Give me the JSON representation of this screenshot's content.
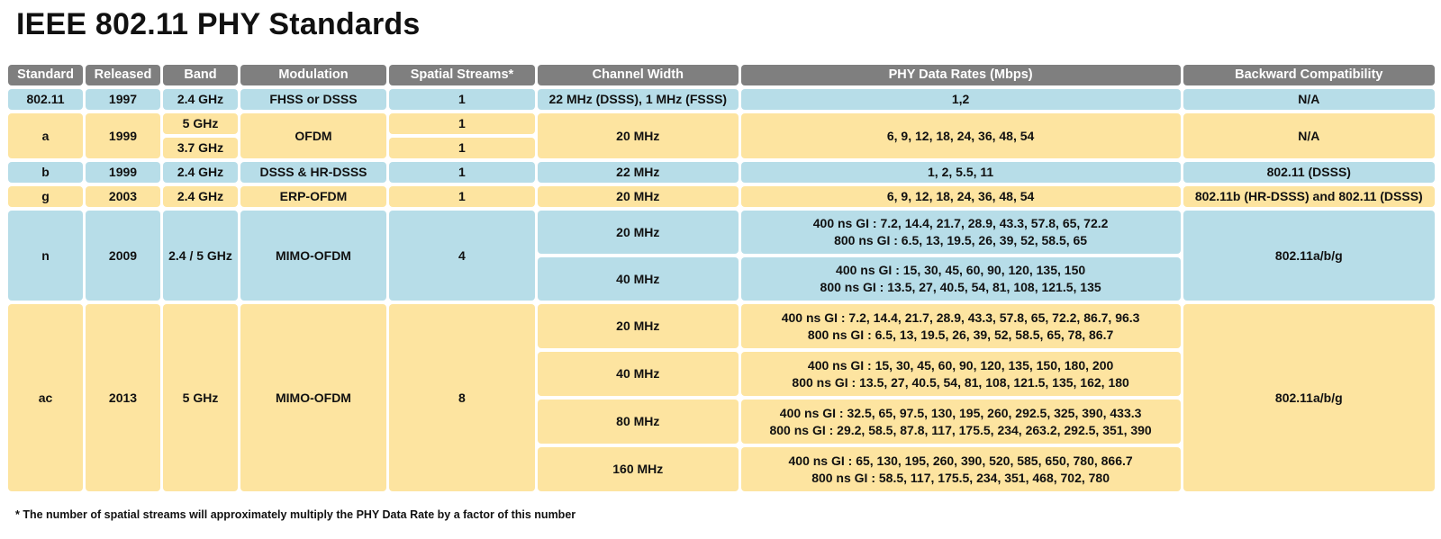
{
  "title": "IEEE 802.11 PHY Standards",
  "headers": {
    "standard": "Standard",
    "released": "Released",
    "band": "Band",
    "modulation": "Modulation",
    "streams": "Spatial Streams*",
    "channel_width": "Channel Width",
    "data_rates": "PHY Data Rates (Mbps)",
    "backward": "Backward Compatibility"
  },
  "rows": {
    "legacy": {
      "standard": "802.11",
      "released": "1997",
      "band": "2.4 GHz",
      "modulation": "FHSS or DSSS",
      "streams": "1",
      "channel_width": "22 MHz (DSSS), 1 MHz (FSSS)",
      "data_rates": "1,2",
      "backward": "N/A"
    },
    "a": {
      "standard": "a",
      "released": "1999",
      "band_1": "5 GHz",
      "band_2": "3.7 GHz",
      "modulation": "OFDM",
      "streams_1": "1",
      "streams_2": "1",
      "channel_width": "20 MHz",
      "data_rates": "6, 9, 12, 18, 24, 36, 48, 54",
      "backward": "N/A"
    },
    "b": {
      "standard": "b",
      "released": "1999",
      "band": "2.4 GHz",
      "modulation": "DSSS & HR-DSSS",
      "streams": "1",
      "channel_width": "22 MHz",
      "data_rates": "1, 2, 5.5, 11",
      "backward": "802.11 (DSSS)"
    },
    "g": {
      "standard": "g",
      "released": "2003",
      "band": "2.4 GHz",
      "modulation": "ERP-OFDM",
      "streams": "1",
      "channel_width": "20 MHz",
      "data_rates": "6, 9, 12, 18, 24, 36, 48, 54",
      "backward": "802.11b (HR-DSSS) and 802.11 (DSSS)"
    },
    "n": {
      "standard": "n",
      "released": "2009",
      "band": "2.4 / 5 GHz",
      "modulation": "MIMO-OFDM",
      "streams": "4",
      "backward": "802.11a/b/g",
      "w20": "20 MHz",
      "w20_400": "400 ns GI : 7.2, 14.4, 21.7, 28.9, 43.3, 57.8, 65, 72.2",
      "w20_800": "800 ns GI : 6.5, 13, 19.5, 26, 39, 52, 58.5, 65",
      "w40": "40 MHz",
      "w40_400": "400 ns GI : 15, 30, 45, 60, 90, 120, 135, 150",
      "w40_800": "800 ns GI : 13.5, 27, 40.5, 54, 81, 108, 121.5, 135"
    },
    "ac": {
      "standard": "ac",
      "released": "2013",
      "band": "5 GHz",
      "modulation": "MIMO-OFDM",
      "streams": "8",
      "backward": "802.11a/b/g",
      "w20": "20 MHz",
      "w20_400": "400 ns GI : 7.2, 14.4, 21.7, 28.9, 43.3, 57.8, 65, 72.2, 86.7, 96.3",
      "w20_800": "800 ns GI : 6.5, 13, 19.5, 26, 39, 52, 58.5, 65, 78, 86.7",
      "w40": "40 MHz",
      "w40_400": "400 ns GI : 15, 30, 45, 60, 90, 120, 135, 150, 180, 200",
      "w40_800": "800 ns GI : 13.5, 27, 40.5, 54, 81, 108, 121.5, 135, 162, 180",
      "w80": "80 MHz",
      "w80_400": "400 ns GI : 32.5, 65, 97.5, 130, 195, 260, 292.5, 325, 390, 433.3",
      "w80_800": "800 ns GI : 29.2, 58.5, 87.8, 117, 175.5, 234, 263.2, 292.5, 351, 390",
      "w160": "160 MHz",
      "w160_400": "400 ns GI : 65, 130, 195, 260, 390, 520, 585, 650, 780, 866.7",
      "w160_800": "800 ns GI : 58.5, 117, 175.5, 234, 351, 468, 702, 780"
    }
  },
  "footnote": "* The number of spatial streams will approximately multiply the PHY Data Rate by a factor of this number",
  "colors": {
    "header_bg": "#7f7f7f",
    "blue_row": "#b7dde8",
    "yellow_row": "#fde4a0"
  }
}
